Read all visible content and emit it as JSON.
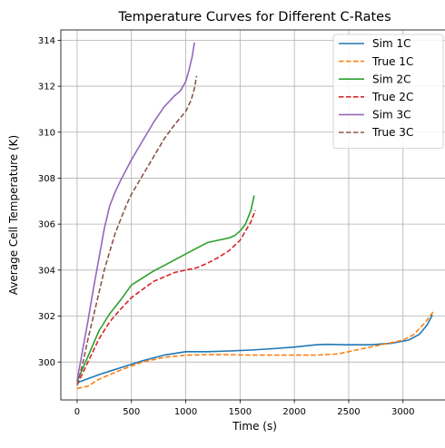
{
  "chart_data": {
    "type": "line",
    "title": "Temperature Curves for Different C-Rates",
    "xlabel": "Time (s)",
    "ylabel": "Average Cell Temperature (K)",
    "xlim": [
      -150,
      3420
    ],
    "ylim": [
      298.35,
      314.45
    ],
    "xticks": [
      0,
      500,
      1000,
      1500,
      2000,
      2500,
      3000
    ],
    "yticks": [
      300,
      302,
      304,
      306,
      308,
      310,
      312,
      314
    ],
    "grid": true,
    "legend_position": "top-right",
    "series": [
      {
        "name": "Sim 1C",
        "color": "#1f77b4",
        "dash": "solid",
        "x": [
          0,
          200,
          400,
          600,
          800,
          1000,
          1200,
          1400,
          1600,
          1800,
          2000,
          2200,
          2300,
          2500,
          2700,
          2900,
          3050,
          3150,
          3220,
          3270
        ],
        "y": [
          299.1,
          299.45,
          299.75,
          300.05,
          300.3,
          300.45,
          300.45,
          300.48,
          300.52,
          300.58,
          300.65,
          300.75,
          300.77,
          300.75,
          300.75,
          300.82,
          300.95,
          301.2,
          301.6,
          302.05
        ]
      },
      {
        "name": "True 1C",
        "color": "#ff7f0e",
        "dash": "dashed",
        "x": [
          0,
          100,
          200,
          400,
          600,
          800,
          1000,
          1200,
          1400,
          1600,
          1800,
          2000,
          2200,
          2400,
          2600,
          2800,
          3000,
          3100,
          3200,
          3280
        ],
        "y": [
          298.85,
          298.95,
          299.25,
          299.65,
          300.0,
          300.2,
          300.3,
          300.32,
          300.32,
          300.3,
          300.3,
          300.3,
          300.3,
          300.35,
          300.55,
          300.75,
          300.95,
          301.2,
          301.7,
          302.2
        ]
      },
      {
        "name": "Sim 2C",
        "color": "#2ca02c",
        "dash": "solid",
        "x": [
          0,
          100,
          200,
          300,
          400,
          500,
          600,
          700,
          800,
          900,
          1000,
          1100,
          1200,
          1300,
          1400,
          1450,
          1500,
          1550,
          1600,
          1630
        ],
        "y": [
          299.15,
          300.25,
          301.35,
          302.1,
          302.7,
          303.35,
          303.65,
          303.95,
          304.2,
          304.45,
          304.7,
          304.95,
          305.2,
          305.3,
          305.4,
          305.5,
          305.7,
          306.0,
          306.6,
          307.25
        ]
      },
      {
        "name": "True 2C",
        "color": "#d62728",
        "dash": "dashed",
        "x": [
          0,
          100,
          200,
          300,
          400,
          500,
          600,
          700,
          800,
          900,
          1000,
          1100,
          1200,
          1300,
          1400,
          1500,
          1550,
          1600,
          1640
        ],
        "y": [
          299.0,
          300.0,
          301.0,
          301.75,
          302.3,
          302.8,
          303.15,
          303.5,
          303.7,
          303.9,
          304.0,
          304.1,
          304.3,
          304.55,
          304.85,
          305.3,
          305.7,
          306.1,
          306.6
        ]
      },
      {
        "name": "Sim 3C",
        "color": "#9467bd",
        "dash": "solid",
        "x": [
          0,
          50,
          100,
          150,
          200,
          250,
          300,
          350,
          400,
          500,
          600,
          700,
          800,
          900,
          950,
          1000,
          1030,
          1060,
          1080
        ],
        "y": [
          299.2,
          300.5,
          301.8,
          303.2,
          304.5,
          305.8,
          306.8,
          307.4,
          307.9,
          308.8,
          309.6,
          310.4,
          311.1,
          311.6,
          311.8,
          312.2,
          312.7,
          313.3,
          313.9
        ]
      },
      {
        "name": "True 3C",
        "color": "#8c564b",
        "dash": "dashed",
        "x": [
          0,
          50,
          100,
          150,
          200,
          250,
          300,
          350,
          400,
          450,
          500,
          600,
          700,
          800,
          900,
          1000,
          1050,
          1080,
          1100
        ],
        "y": [
          299.0,
          299.9,
          301.0,
          302.0,
          303.0,
          304.0,
          304.8,
          305.6,
          306.2,
          306.8,
          307.3,
          308.1,
          308.9,
          309.7,
          310.35,
          310.9,
          311.4,
          311.9,
          312.45
        ]
      }
    ]
  }
}
